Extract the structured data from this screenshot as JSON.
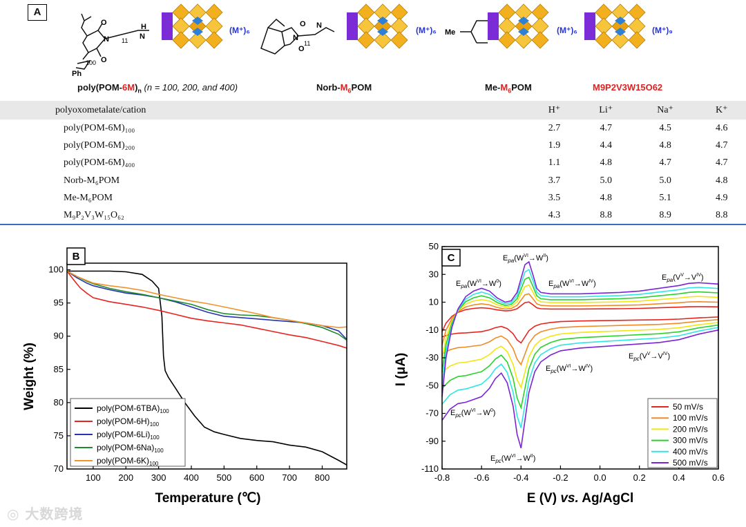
{
  "panel_a": {
    "label": "A",
    "captions": {
      "c1_pre": "poly(POM-",
      "c1_red": "6M",
      "c1_post": ")",
      "c1_sub": "n",
      "c1_note": "(n = 100, 200, and 400)",
      "c2_pre": "Norb-",
      "c2_red": "M",
      "c2_red_sub": "6",
      "c2_post": "POM",
      "c3_pre": "Me-",
      "c3_red": "M",
      "c3_red_sub": "6",
      "c3_post": "POM",
      "c4": "M9P2V3W15O62"
    },
    "counter_ions": [
      "(M⁺)₆",
      "(M⁺)₆",
      "(M⁺)₆",
      "(M⁺)₉"
    ],
    "struct_labels": {
      "n100": "100",
      "ph": "Ph",
      "n11a": "11",
      "n11b": "11",
      "me": "Me"
    },
    "table": {
      "headers": [
        "polyoxometalate/cation",
        "H⁺",
        "Li⁺",
        "Na⁺",
        "K⁺"
      ],
      "rows": [
        {
          "name": "poly(POM-6M)₁₀₀",
          "h": "2.7",
          "li": "4.7",
          "na": "4.5",
          "k": "4.6"
        },
        {
          "name": "poly(POM-6M)₂₀₀",
          "h": "1.9",
          "li": "4.4",
          "na": "4.8",
          "k": "4.7"
        },
        {
          "name": "poly(POM-6M)₄₀₀",
          "h": "1.1",
          "li": "4.8",
          "na": "4.7",
          "k": "4.7"
        },
        {
          "name": "Norb-M₆POM",
          "h": "3.7",
          "li": "5.0",
          "na": "5.0",
          "k": "4.8"
        },
        {
          "name": "Me-M₆POM",
          "h": "3.5",
          "li": "4.8",
          "na": "5.1",
          "k": "4.9"
        },
        {
          "name": "M₉P₂V₃W₁₅O₆₂",
          "h": "4.3",
          "li": "8.8",
          "na": "8.9",
          "k": "8.8"
        }
      ]
    }
  },
  "chart_data": [
    {
      "panel": "B",
      "type": "line",
      "title": "",
      "xlabel": "Temperature (℃)",
      "ylabel": "Weight (%)",
      "xlim": [
        20,
        875
      ],
      "ylim": [
        70,
        101
      ],
      "xticks": [
        "100",
        "200",
        "300",
        "400",
        "500",
        "600",
        "700",
        "800"
      ],
      "yticks": [
        "70",
        "75",
        "80",
        "85",
        "90",
        "95",
        "100"
      ],
      "legend_position": "bottom-left",
      "series": [
        {
          "name": "poly(POM-6TBA)100",
          "color": "#000000",
          "x": [
            20,
            60,
            100,
            150,
            200,
            250,
            280,
            300,
            310,
            315,
            320,
            330,
            350,
            380,
            410,
            440,
            470,
            500,
            550,
            600,
            650,
            700,
            750,
            800,
            850,
            875
          ],
          "y": [
            99.8,
            99.8,
            99.8,
            99.8,
            99.7,
            99.3,
            98.3,
            97.2,
            93.0,
            87.0,
            84.8,
            83.8,
            82.3,
            80.0,
            78.0,
            76.3,
            75.6,
            75.2,
            74.6,
            74.3,
            74.1,
            73.6,
            73.3,
            72.6,
            71.3,
            70.6
          ]
        },
        {
          "name": "poly(POM-6H)100",
          "color": "#e8231f",
          "x": [
            20,
            40,
            60,
            80,
            100,
            150,
            200,
            250,
            300,
            350,
            400,
            450,
            500,
            550,
            600,
            650,
            700,
            750,
            800,
            850,
            875
          ],
          "y": [
            99.8,
            98.5,
            97.3,
            96.5,
            95.8,
            95.2,
            94.8,
            94.4,
            93.9,
            93.3,
            92.7,
            92.3,
            92.0,
            91.7,
            91.2,
            90.7,
            90.2,
            89.8,
            89.2,
            88.6,
            88.2
          ]
        },
        {
          "name": "poly(POM-6Li)100",
          "color": "#2633b0",
          "x": [
            20,
            50,
            80,
            100,
            150,
            200,
            250,
            300,
            350,
            400,
            450,
            500,
            550,
            600,
            650,
            700,
            750,
            800,
            850,
            875
          ],
          "y": [
            99.8,
            98.8,
            98.0,
            97.6,
            97.0,
            96.5,
            96.2,
            95.8,
            95.2,
            94.4,
            93.6,
            93.0,
            92.8,
            92.6,
            92.4,
            92.2,
            92.0,
            91.6,
            90.8,
            89.5
          ]
        },
        {
          "name": "poly(POM-6Na)100",
          "color": "#1f8a2a",
          "x": [
            20,
            50,
            80,
            100,
            150,
            200,
            250,
            300,
            350,
            400,
            450,
            500,
            550,
            600,
            650,
            700,
            750,
            800,
            850,
            875
          ],
          "y": [
            99.8,
            99.0,
            98.3,
            97.9,
            97.2,
            96.7,
            96.3,
            95.8,
            95.3,
            94.8,
            94.0,
            93.4,
            93.2,
            93.1,
            92.8,
            92.4,
            91.9,
            91.3,
            90.3,
            89.4
          ]
        },
        {
          "name": "poly(POM-6K)100",
          "color": "#f0932b",
          "x": [
            20,
            50,
            80,
            100,
            150,
            200,
            250,
            300,
            350,
            400,
            450,
            500,
            550,
            600,
            650,
            700,
            750,
            800,
            850,
            875
          ],
          "y": [
            99.8,
            99.0,
            98.4,
            98.0,
            97.6,
            97.3,
            96.9,
            96.3,
            95.8,
            95.3,
            94.9,
            94.4,
            93.9,
            93.4,
            92.8,
            92.4,
            92.0,
            91.6,
            91.3,
            91.4
          ]
        }
      ]
    },
    {
      "panel": "C",
      "type": "line",
      "title": "",
      "xlabel": "E (V) vs. Ag/AgCl",
      "ylabel": "I (μA)",
      "xlim": [
        -0.8,
        0.6
      ],
      "ylim": [
        -110,
        50
      ],
      "xticks": [
        "-0.8",
        "-0.6",
        "-0.4",
        "-0.2",
        "0.0",
        "0.2",
        "0.4",
        "0.6"
      ],
      "yticks": [
        "-110",
        "-90",
        "-70",
        "-50",
        "-30",
        "-10",
        "10",
        "30",
        "50"
      ],
      "legend_position": "bottom-right",
      "peak_labels": [
        "E_pa(W^VI→W^II)",
        "E_pa(W^VI→W^0)",
        "E_pa(W^VI→W^IV)",
        "E_pa(V^V→V^IV)",
        "E_pc(W^VI→W^IV)",
        "E_pc(V^V→V^IV)",
        "E_pc(W^VI→W^0)",
        "E_pc(W^VI→W^II)"
      ],
      "series": [
        {
          "name": "50 mV/s",
          "color": "#e8231f",
          "scale": 0.22
        },
        {
          "name": "100 mV/s",
          "color": "#f08a24",
          "scale": 0.38
        },
        {
          "name": "200 mV/s",
          "color": "#f2e60f",
          "scale": 0.55
        },
        {
          "name": "300 mV/s",
          "color": "#2bd12b",
          "scale": 0.7
        },
        {
          "name": "400 mV/s",
          "color": "#2ee6e6",
          "scale": 0.85
        },
        {
          "name": "500 mV/s",
          "color": "#7a22d6",
          "scale": 1.0
        }
      ],
      "reference_curve_500": {
        "anodic": {
          "E": [
            -0.8,
            -0.78,
            -0.75,
            -0.72,
            -0.68,
            -0.64,
            -0.6,
            -0.56,
            -0.52,
            -0.48,
            -0.45,
            -0.42,
            -0.4,
            -0.38,
            -0.36,
            -0.34,
            -0.32,
            -0.3,
            -0.25,
            -0.2,
            -0.1,
            0.0,
            0.1,
            0.2,
            0.3,
            0.4,
            0.45,
            0.5,
            0.55,
            0.6
          ],
          "I": [
            -58,
            -30,
            -8,
            5,
            14,
            18,
            20,
            18,
            13,
            10,
            11,
            17,
            27,
            37,
            39,
            30,
            20,
            17,
            16,
            16,
            16,
            16.5,
            17,
            18,
            20,
            22,
            23.5,
            24,
            23.5,
            23
          ]
        },
        "cathodic": {
          "E": [
            0.6,
            0.5,
            0.4,
            0.3,
            0.2,
            0.1,
            0.0,
            -0.1,
            -0.2,
            -0.25,
            -0.3,
            -0.33,
            -0.36,
            -0.38,
            -0.4,
            -0.42,
            -0.44,
            -0.47,
            -0.5,
            -0.53,
            -0.56,
            -0.6,
            -0.64,
            -0.68,
            -0.72,
            -0.76,
            -0.8
          ],
          "I": [
            -10,
            -13,
            -17,
            -19,
            -20,
            -21,
            -22,
            -23,
            -25,
            -28,
            -33,
            -40,
            -55,
            -75,
            -95,
            -85,
            -65,
            -48,
            -41,
            -45,
            -52,
            -58,
            -60,
            -62,
            -63,
            -67,
            -75
          ]
        }
      }
    }
  ]
}
